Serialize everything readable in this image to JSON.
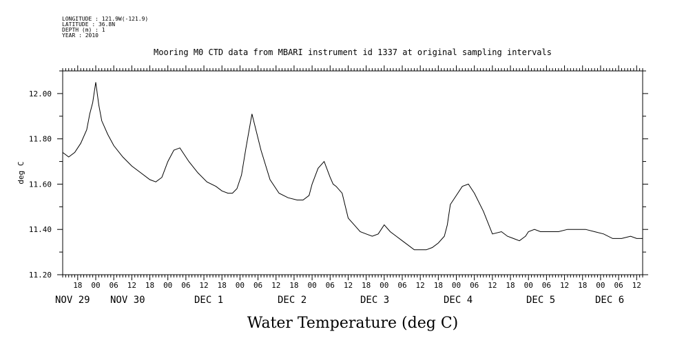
{
  "meta": [
    "LONGITUDE : 121.9W(-121.9)",
    "LATITUDE : 36.8N",
    "DEPTH (m) : 1",
    "YEAR : 2010"
  ],
  "chart_data": {
    "type": "line",
    "title": "Mooring M0 CTD data from MBARI instrument id 1337 at original sampling intervals",
    "xlabel": "Water Temperature (deg C)",
    "ylabel": "deg C",
    "ylim": [
      11.2,
      12.1
    ],
    "yticks": [
      "11.20",
      "11.40",
      "11.60",
      "11.80",
      "12.00"
    ],
    "xlim": [
      "2010-11-28T13:00",
      "2010-12-06T14:00"
    ],
    "hour_tick_labels": [
      "18",
      "00",
      "06",
      "12",
      "18",
      "00",
      "06",
      "12",
      "18",
      "00",
      "06",
      "12",
      "18",
      "00",
      "06",
      "12",
      "18",
      "00",
      "06",
      "12",
      "18",
      "00",
      "06",
      "12",
      "18",
      "00",
      "06",
      "12",
      "18",
      "00",
      "06",
      "12"
    ],
    "day_labels": [
      "NOV 29",
      "NOV 30",
      "DEC  1",
      "DEC  2",
      "DEC  3",
      "DEC  4",
      "DEC  5",
      "DEC  6"
    ],
    "grid": false,
    "series": [
      {
        "x": [
          "2010-11-28T13:00",
          "2010-11-28T15:00",
          "2010-11-28T17:00",
          "2010-11-28T19:00",
          "2010-11-28T21:00",
          "2010-11-28T22:00",
          "2010-11-28T23:00",
          "2010-11-29T00:00",
          "2010-11-29T01:00",
          "2010-11-29T02:00",
          "2010-11-29T04:00",
          "2010-11-29T06:00",
          "2010-11-29T09:00",
          "2010-11-29T12:00",
          "2010-11-29T15:00",
          "2010-11-29T18:00",
          "2010-11-29T20:00",
          "2010-11-29T22:00",
          "2010-11-30T00:00",
          "2010-11-30T02:00",
          "2010-11-30T04:00",
          "2010-11-30T07:00",
          "2010-11-30T10:00",
          "2010-11-30T13:00",
          "2010-11-30T16:00",
          "2010-11-30T18:00",
          "2010-11-30T20:00",
          "2010-11-30T21:30",
          "2010-11-30T23:00",
          "2010-12-01T00:30",
          "2010-12-01T02:00",
          "2010-12-01T04:00",
          "2010-12-01T07:00",
          "2010-12-01T10:00",
          "2010-12-01T13:00",
          "2010-12-01T16:00",
          "2010-12-01T19:00",
          "2010-12-01T21:00",
          "2010-12-01T23:00",
          "2010-12-02T00:00",
          "2010-12-02T02:00",
          "2010-12-02T04:00",
          "2010-12-02T06:00",
          "2010-12-02T07:00",
          "2010-12-02T08:00",
          "2010-12-02T10:00",
          "2010-12-02T12:00",
          "2010-12-02T14:00",
          "2010-12-02T16:00",
          "2010-12-02T18:00",
          "2010-12-02T20:00",
          "2010-12-02T22:00",
          "2010-12-03T00:00",
          "2010-12-03T02:00",
          "2010-12-03T04:00",
          "2010-12-03T06:00",
          "2010-12-03T08:00",
          "2010-12-03T10:00",
          "2010-12-03T12:00",
          "2010-12-03T14:00",
          "2010-12-03T16:00",
          "2010-12-03T18:00",
          "2010-12-03T20:00",
          "2010-12-03T21:00",
          "2010-12-03T22:00",
          "2010-12-04T00:00",
          "2010-12-04T02:00",
          "2010-12-04T04:00",
          "2010-12-04T06:00",
          "2010-12-04T09:00",
          "2010-12-04T12:00",
          "2010-12-04T15:00",
          "2010-12-04T17:00",
          "2010-12-04T19:00",
          "2010-12-04T21:00",
          "2010-12-04T23:00",
          "2010-12-05T00:00",
          "2010-12-05T02:00",
          "2010-12-05T04:00",
          "2010-12-05T06:00",
          "2010-12-05T08:00",
          "2010-12-05T10:00",
          "2010-12-05T13:00",
          "2010-12-05T16:00",
          "2010-12-05T19:00",
          "2010-12-05T22:00",
          "2010-12-06T01:00",
          "2010-12-06T04:00",
          "2010-12-06T07:00",
          "2010-12-06T10:00",
          "2010-12-06T12:00",
          "2010-12-06T14:00"
        ],
        "y": [
          11.74,
          11.72,
          11.74,
          11.78,
          11.84,
          11.91,
          11.96,
          12.05,
          11.95,
          11.88,
          11.82,
          11.77,
          11.72,
          11.68,
          11.65,
          11.62,
          11.61,
          11.63,
          11.7,
          11.75,
          11.76,
          11.7,
          11.65,
          11.61,
          11.59,
          11.57,
          11.56,
          11.56,
          11.58,
          11.64,
          11.76,
          11.91,
          11.75,
          11.62,
          11.56,
          11.54,
          11.53,
          11.53,
          11.55,
          11.6,
          11.67,
          11.7,
          11.63,
          11.6,
          11.59,
          11.56,
          11.45,
          11.42,
          11.39,
          11.38,
          11.37,
          11.38,
          11.42,
          11.39,
          11.37,
          11.35,
          11.33,
          11.31,
          11.31,
          11.31,
          11.32,
          11.34,
          11.37,
          11.42,
          11.51,
          11.55,
          11.59,
          11.6,
          11.56,
          11.48,
          11.38,
          11.39,
          11.37,
          11.36,
          11.35,
          11.37,
          11.39,
          11.4,
          11.39,
          11.39,
          11.39,
          11.39,
          11.4,
          11.4,
          11.4,
          11.39,
          11.38,
          11.36,
          11.36,
          11.37,
          11.36,
          11.36
        ]
      }
    ]
  }
}
